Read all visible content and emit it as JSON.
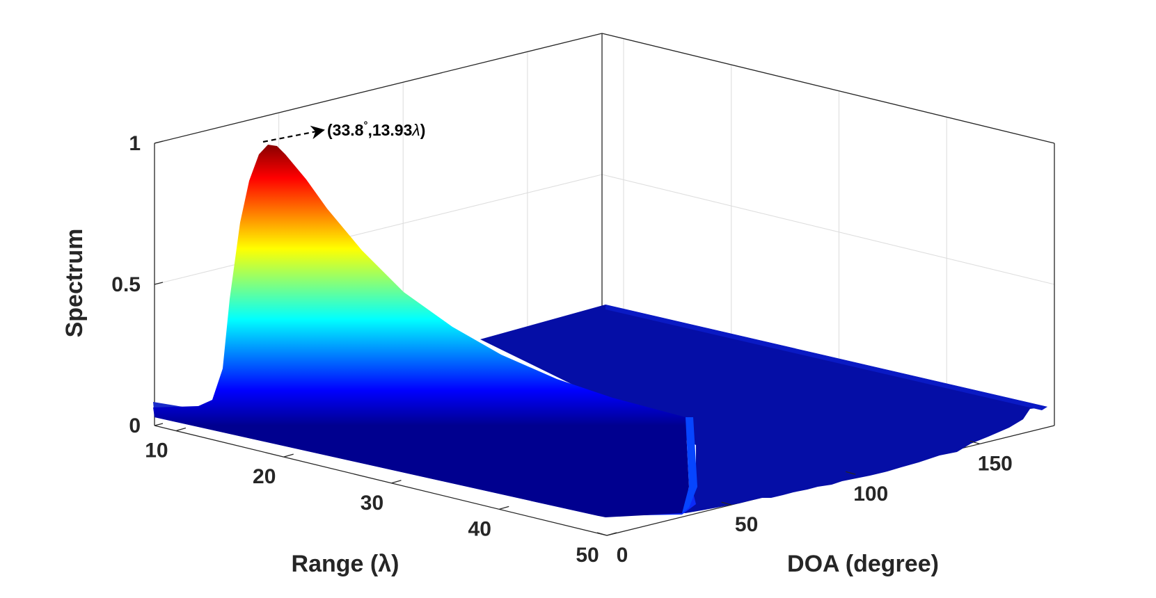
{
  "chart_data": {
    "type": "surface",
    "zlabel": "Spectrum",
    "xlabel": "Range (λ)",
    "ylabel": "DOA (degree)",
    "range_ticks": [
      "10",
      "20",
      "30",
      "40",
      "50"
    ],
    "doa_ticks": [
      "0",
      "50",
      "100",
      "150"
    ],
    "spectrum_ticks": [
      "0",
      "0.5",
      "1"
    ],
    "range_lim": [
      8,
      50
    ],
    "doa_lim": [
      0,
      180
    ],
    "spectrum_lim": [
      0,
      1
    ],
    "colormap": "jet",
    "peak": {
      "doa": 33.8,
      "range": 13.93,
      "spectrum": 1.0
    },
    "annotation": {
      "text_prefix": "(33.8",
      "degree_mark": "°",
      "text_mid": ",13.93",
      "lambda": "λ",
      "text_suffix": ")"
    }
  }
}
